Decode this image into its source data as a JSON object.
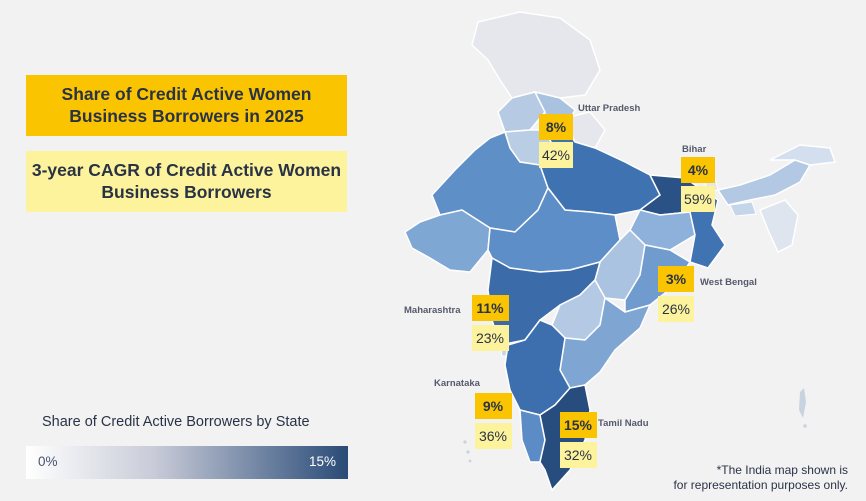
{
  "titles": {
    "share": "Share of Credit Active Women Business Borrowers in 2025",
    "cagr": "3-year CAGR of Credit Active Women Business Borrowers"
  },
  "scale": {
    "title": "Share of Credit Active Borrowers by State",
    "min_label": "0%",
    "max_label": "15%",
    "colors": {
      "low": "#ffffff",
      "high": "#294b77"
    }
  },
  "disclaimer": [
    "*The India map shown is",
    "for representation purposes only."
  ],
  "colors": {
    "share_box": "#fbc400",
    "cagr_box": "#fdf39c",
    "background": "#f2f2f3"
  },
  "states": [
    {
      "name": "Uttar Pradesh",
      "share": "8%",
      "cagr": "42%"
    },
    {
      "name": "Bihar",
      "share": "4%",
      "cagr": "59%"
    },
    {
      "name": "West Bengal",
      "share": "3%",
      "cagr": "26%"
    },
    {
      "name": "Maharashtra",
      "share": "11%",
      "cagr": "23%"
    },
    {
      "name": "Karnataka",
      "share": "9%",
      "cagr": "36%"
    },
    {
      "name": "Tamil Nadu",
      "share": "15%",
      "cagr": "32%"
    }
  ]
}
